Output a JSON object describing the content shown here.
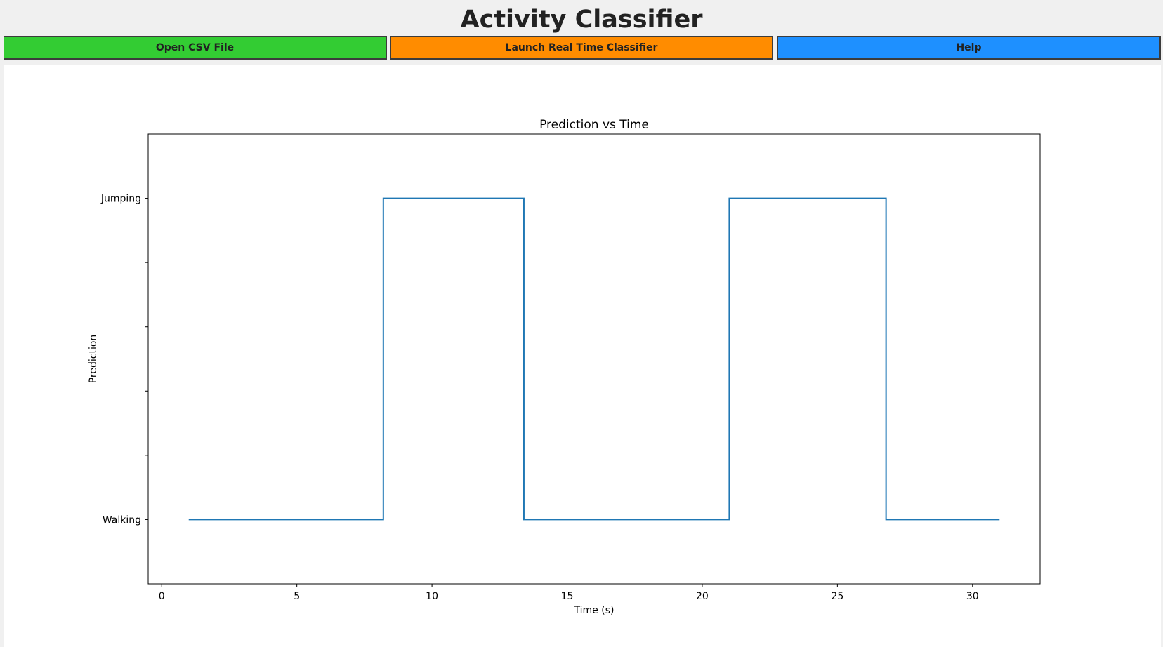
{
  "app": {
    "title": "Activity Classifier"
  },
  "toolbar": {
    "open_label": "Open CSV File",
    "launch_label": "Launch Real Time Classifier",
    "help_label": "Help"
  },
  "colors": {
    "open_button": "#33cc33",
    "launch_button": "#ff8c00",
    "help_button": "#1e90ff",
    "series_line": "#1f77b4"
  },
  "chart_data": {
    "type": "line",
    "drawstyle": "steps-post",
    "title": "Prediction vs Time",
    "xlabel": "Time (s)",
    "ylabel": "Prediction",
    "xlim": [
      -0.5,
      32.5
    ],
    "ylim": [
      -0.2,
      1.2
    ],
    "x_ticks": [
      0,
      5,
      10,
      15,
      20,
      25,
      30
    ],
    "y_ticks": [
      0,
      0.2,
      0.4,
      0.6,
      0.8,
      1
    ],
    "y_tick_labels": [
      "Walking",
      "",
      "",
      "",
      "",
      "Jumping"
    ],
    "grid": false,
    "series": [
      {
        "x": [
          1,
          8.2,
          13.4,
          21,
          26.8,
          31
        ],
        "y": [
          0,
          1,
          0,
          1,
          0,
          0
        ]
      }
    ]
  }
}
